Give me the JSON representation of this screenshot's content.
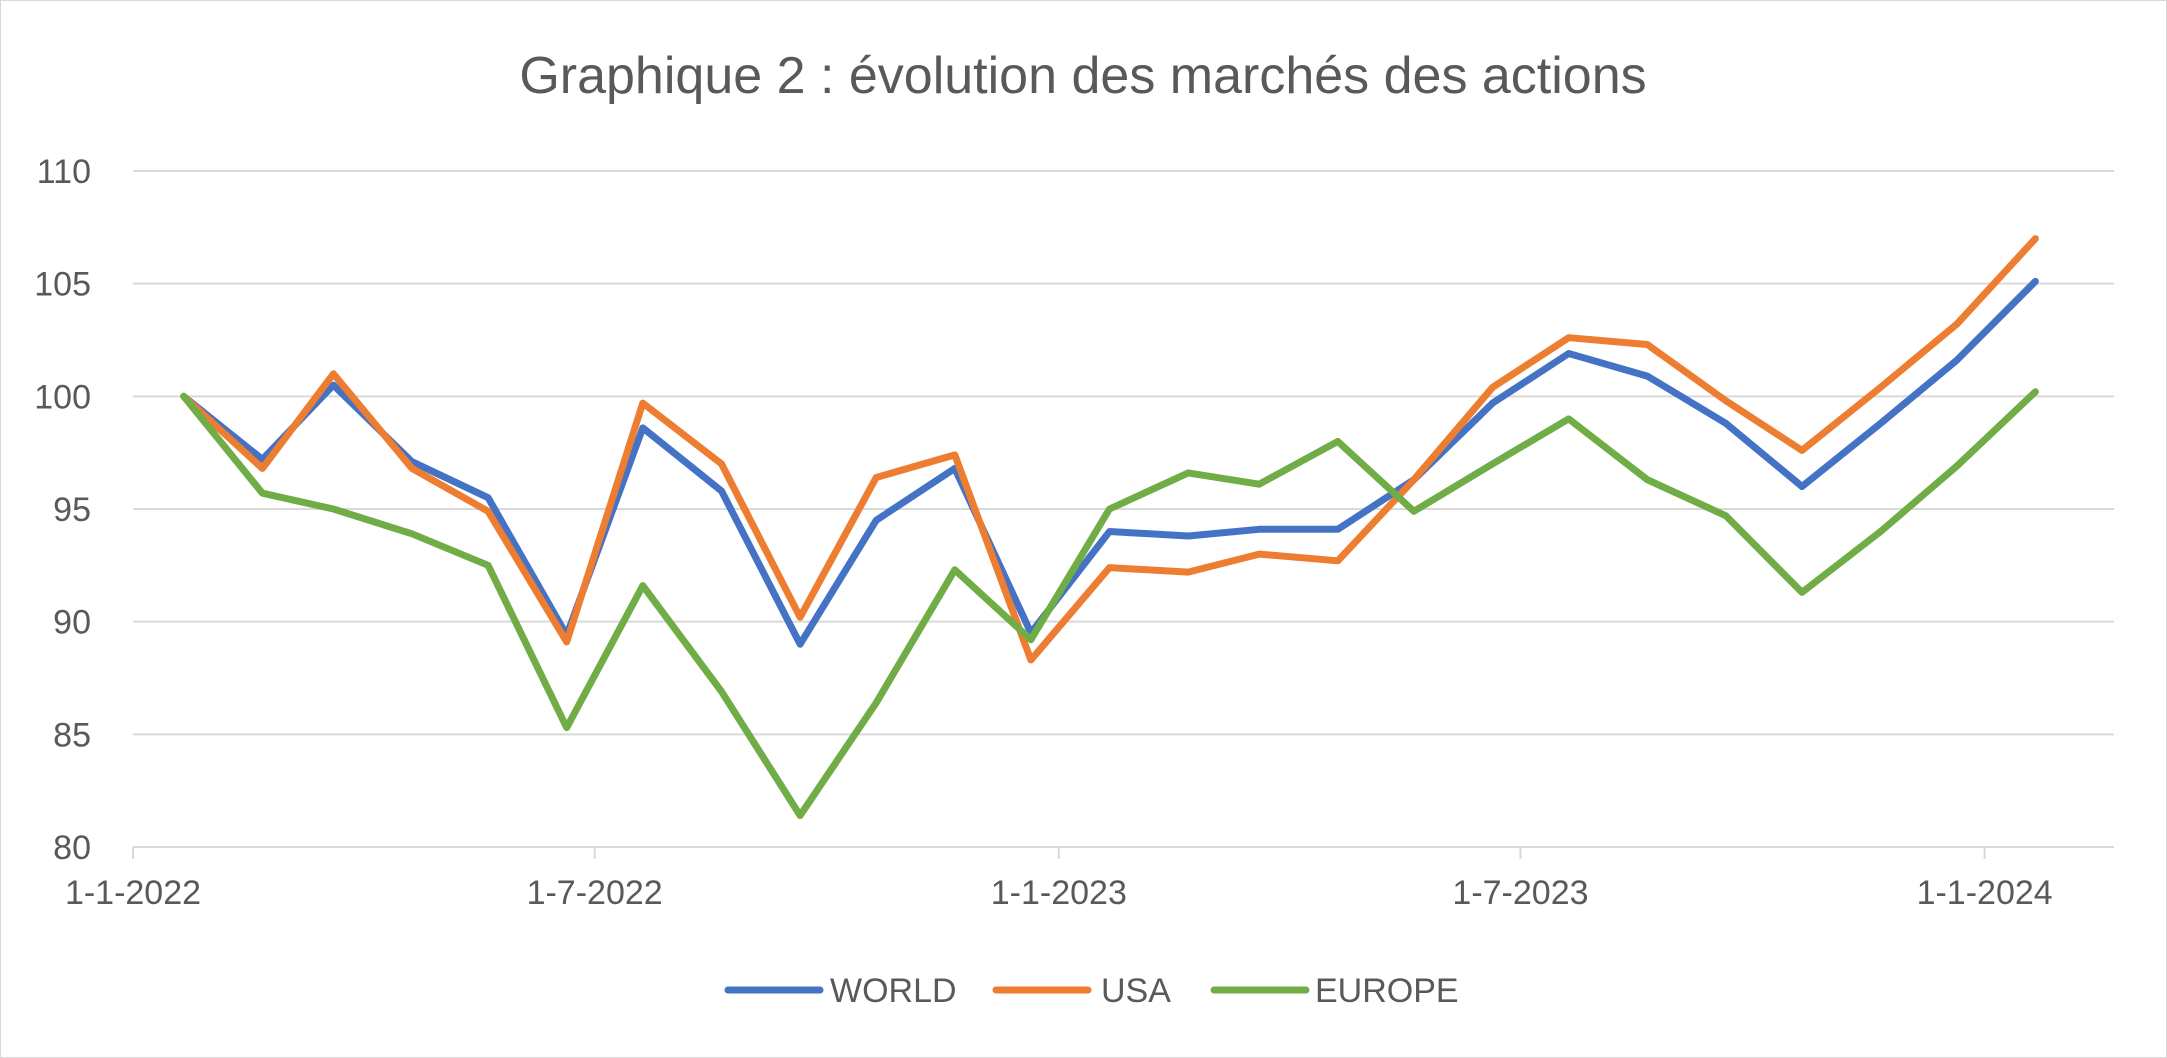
{
  "chart_data": {
    "type": "line",
    "title": "Graphique 2 : évolution des marchés des actions",
    "xlabel": "",
    "ylabel": "",
    "ylim": [
      80,
      110
    ],
    "yticks": [
      80,
      85,
      90,
      95,
      100,
      105,
      110
    ],
    "ytick_labels": [
      "80",
      "85",
      "90",
      "95",
      "100",
      "105",
      "110"
    ],
    "xlim": [
      "2021-12-11",
      "2024-01-31"
    ],
    "xticks": [
      "2021-12-11",
      "2022-06-11",
      "2022-12-11",
      "2023-06-11",
      "2023-12-11"
    ],
    "xtick_labels": [
      "1-1-2022",
      "1-7-2022",
      "1-1-2023",
      "1-7-2023",
      "1-1-2024"
    ],
    "grid": true,
    "legend_position": "bottom",
    "x": [
      "2021-12-31",
      "2022-01-31",
      "2022-02-28",
      "2022-03-31",
      "2022-04-30",
      "2022-05-31",
      "2022-06-30",
      "2022-07-31",
      "2022-08-31",
      "2022-09-30",
      "2022-10-31",
      "2022-11-30",
      "2022-12-31",
      "2023-01-31",
      "2023-02-28",
      "2023-03-31",
      "2023-04-30",
      "2023-05-31",
      "2023-06-30",
      "2023-07-31",
      "2023-08-31",
      "2023-09-30",
      "2023-10-31",
      "2023-11-30",
      "2023-12-31"
    ],
    "series": [
      {
        "name": "WORLD",
        "color": "#4472c4",
        "values": [
          100,
          97.2,
          100.5,
          97.1,
          95.5,
          89.4,
          98.6,
          95.8,
          89.0,
          94.5,
          96.8,
          89.5,
          94.0,
          93.8,
          94.1,
          94.1,
          96.3,
          99.7,
          101.9,
          100.9,
          98.8,
          96.0,
          98.8,
          101.6,
          105.1
        ]
      },
      {
        "name": "USA",
        "color": "#ed7d31",
        "values": [
          100,
          96.8,
          101.0,
          96.8,
          94.9,
          89.1,
          99.7,
          97.0,
          90.2,
          96.4,
          97.4,
          88.3,
          92.4,
          92.2,
          93.0,
          92.7,
          96.3,
          100.4,
          102.6,
          102.3,
          99.8,
          97.6,
          100.4,
          103.2,
          107.0
        ]
      },
      {
        "name": "EUROPE",
        "color": "#70ad47",
        "values": [
          100,
          95.7,
          95.0,
          93.9,
          92.5,
          85.3,
          91.6,
          86.9,
          81.4,
          86.4,
          92.3,
          89.2,
          95.0,
          96.6,
          96.1,
          98.0,
          94.9,
          97.0,
          99.0,
          96.3,
          94.7,
          91.3,
          94.0,
          96.9,
          100.2
        ]
      }
    ]
  }
}
